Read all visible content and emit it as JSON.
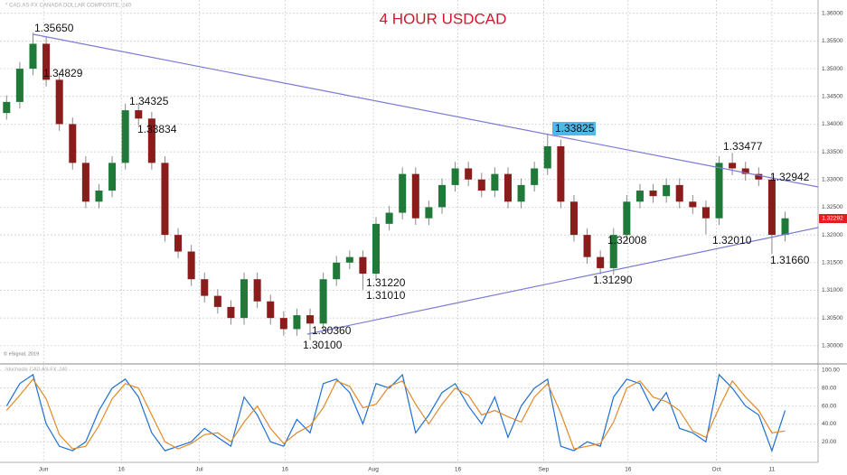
{
  "chart_data": {
    "type": "candlestick",
    "title": "4 HOUR USDCAD",
    "subtitle": "* CAD.AS-FX CANADA DOLLAR COMPOSITE, 240",
    "source": "© eSignal, 2019",
    "last_price": "1.32292",
    "open": [
      1.342,
      1.344,
      1.35,
      1.3545,
      1.348,
      1.34,
      1.333,
      1.326,
      1.328,
      1.333,
      1.3425,
      1.341,
      1.333,
      1.32,
      1.317,
      1.312,
      1.309,
      1.307,
      1.305,
      1.312,
      1.308,
      1.305,
      1.303,
      1.3055,
      1.304,
      1.312,
      1.315,
      1.316,
      1.313,
      1.322,
      1.324,
      1.331,
      1.323,
      1.325,
      1.329,
      1.332,
      1.33,
      1.328,
      1.331,
      1.326,
      1.329,
      1.332,
      1.336,
      1.326,
      1.32,
      1.316,
      1.314,
      1.32,
      1.326,
      1.328,
      1.327,
      1.329,
      1.326,
      1.325,
      1.323,
      1.333,
      1.332,
      1.331,
      1.33,
      1.32
    ],
    "high": [
      1.3452,
      1.3512,
      1.3565,
      1.3557,
      1.3492,
      1.3412,
      1.3342,
      1.3292,
      1.3342,
      1.3437,
      1.3437,
      1.3422,
      1.3342,
      1.3212,
      1.3182,
      1.3132,
      1.3102,
      1.3082,
      1.3132,
      1.3132,
      1.3092,
      1.3062,
      1.3067,
      1.3067,
      1.3132,
      1.3162,
      1.3172,
      1.3172,
      1.3232,
      1.3252,
      1.3322,
      1.3322,
      1.3262,
      1.3302,
      1.3332,
      1.3332,
      1.3312,
      1.3322,
      1.3322,
      1.3302,
      1.3332,
      1.3383,
      1.3372,
      1.3272,
      1.3212,
      1.3172,
      1.3212,
      1.3272,
      1.3292,
      1.3292,
      1.3302,
      1.3302,
      1.3272,
      1.3262,
      1.3342,
      1.3348,
      1.3332,
      1.3322,
      1.3312,
      1.3242
    ],
    "low": [
      1.3408,
      1.3428,
      1.3488,
      1.3468,
      1.3388,
      1.3318,
      1.3248,
      1.3248,
      1.3268,
      1.3318,
      1.3398,
      1.3318,
      1.3188,
      1.3158,
      1.3108,
      1.3078,
      1.3058,
      1.3038,
      1.3038,
      1.3068,
      1.3038,
      1.3018,
      1.3018,
      1.301,
      1.3028,
      1.3108,
      1.3138,
      1.3101,
      1.3118,
      1.3208,
      1.3228,
      1.3218,
      1.3218,
      1.3238,
      1.3278,
      1.3288,
      1.3268,
      1.3268,
      1.3248,
      1.3248,
      1.3278,
      1.3308,
      1.3248,
      1.3188,
      1.3148,
      1.3129,
      1.3128,
      1.3188,
      1.3248,
      1.3258,
      1.3258,
      1.3248,
      1.3238,
      1.3201,
      1.3218,
      1.3308,
      1.3298,
      1.3288,
      1.3166,
      1.3188
    ],
    "close": [
      1.344,
      1.35,
      1.3545,
      1.348,
      1.34,
      1.333,
      1.326,
      1.328,
      1.333,
      1.3425,
      1.341,
      1.333,
      1.32,
      1.317,
      1.312,
      1.309,
      1.307,
      1.305,
      1.312,
      1.308,
      1.305,
      1.303,
      1.3055,
      1.304,
      1.312,
      1.315,
      1.316,
      1.313,
      1.322,
      1.324,
      1.331,
      1.323,
      1.325,
      1.329,
      1.332,
      1.33,
      1.328,
      1.331,
      1.326,
      1.329,
      1.332,
      1.336,
      1.326,
      1.32,
      1.316,
      1.314,
      1.32,
      1.326,
      1.328,
      1.327,
      1.329,
      1.326,
      1.325,
      1.323,
      1.333,
      1.332,
      1.331,
      1.33,
      1.32,
      1.323
    ],
    "up_color": "#1f7a3a",
    "down_color": "#8a1c1c",
    "xlim": [
      -0.5,
      61.5
    ],
    "xticks": [
      {
        "value": 2.8,
        "label": "Jun"
      },
      {
        "value": 8.7,
        "label": "16"
      },
      {
        "value": 14.6,
        "label": "Jul"
      },
      {
        "value": 21.1,
        "label": "16"
      },
      {
        "value": 27.8,
        "label": "Aug"
      },
      {
        "value": 34.2,
        "label": "16"
      },
      {
        "value": 40.7,
        "label": "Sep"
      },
      {
        "value": 47.1,
        "label": "16"
      },
      {
        "value": 53.8,
        "label": "Oct"
      },
      {
        "value": 58.0,
        "label": "11"
      }
    ],
    "ylim": [
      1.2972,
      1.3624
    ],
    "yticks": [
      {
        "value": 1.3,
        "label": "1.30000"
      },
      {
        "value": 1.305,
        "label": "1.30500"
      },
      {
        "value": 1.31,
        "label": "1.31000"
      },
      {
        "value": 1.315,
        "label": "1.31500"
      },
      {
        "value": 1.32,
        "label": "1.32000"
      },
      {
        "value": 1.325,
        "label": "1.32500"
      },
      {
        "value": 1.33,
        "label": "1.33000"
      },
      {
        "value": 1.335,
        "label": "1.33500"
      },
      {
        "value": 1.34,
        "label": "1.34000"
      },
      {
        "value": 1.345,
        "label": "1.34500"
      },
      {
        "value": 1.35,
        "label": "1.35000"
      },
      {
        "value": 1.355,
        "label": "1.35500"
      },
      {
        "value": 1.36,
        "label": "1.36000"
      }
    ],
    "grid": true,
    "annotations": [
      "1.35650",
      "1.34829",
      "1.34325",
      "1.33834",
      "1.33825",
      "1.33477",
      "1.32942",
      "1.32008",
      "1.32010",
      "1.31660",
      "1.31290",
      "1.31220",
      "1.31010",
      "1.30360",
      "1.30100"
    ],
    "oscillator": {
      "title": "Stochastic CAD.AS-FX, 240",
      "ylim": [
        -3,
        105
      ],
      "yticks": [
        {
          "value": 20,
          "label": "20.00"
        },
        {
          "value": 40,
          "label": "40.00"
        },
        {
          "value": 60,
          "label": "60.00"
        },
        {
          "value": 80,
          "label": "80.00"
        },
        {
          "value": 100,
          "label": "100.00"
        }
      ],
      "series": [
        {
          "name": "%K",
          "color": "#1f6fd1",
          "values": [
            60,
            85,
            95,
            40,
            15,
            10,
            20,
            55,
            80,
            90,
            70,
            30,
            10,
            15,
            20,
            35,
            25,
            15,
            70,
            50,
            20,
            15,
            45,
            30,
            85,
            90,
            75,
            40,
            85,
            80,
            95,
            30,
            50,
            75,
            85,
            60,
            40,
            70,
            25,
            60,
            80,
            90,
            15,
            10,
            20,
            15,
            70,
            90,
            85,
            55,
            75,
            35,
            30,
            20,
            95,
            80,
            60,
            50,
            10,
            55
          ]
        },
        {
          "name": "%D",
          "color": "#e08a2a",
          "values": [
            55,
            72,
            90,
            68,
            28,
            12,
            15,
            38,
            68,
            85,
            80,
            50,
            20,
            12,
            18,
            28,
            30,
            20,
            42,
            60,
            35,
            18,
            30,
            38,
            58,
            88,
            82,
            58,
            62,
            82,
            88,
            62,
            40,
            62,
            80,
            72,
            50,
            55,
            48,
            42,
            70,
            85,
            52,
            12,
            15,
            18,
            42,
            80,
            88,
            70,
            65,
            55,
            32,
            25,
            58,
            88,
            70,
            55,
            30,
            32
          ]
        }
      ]
    }
  }
}
